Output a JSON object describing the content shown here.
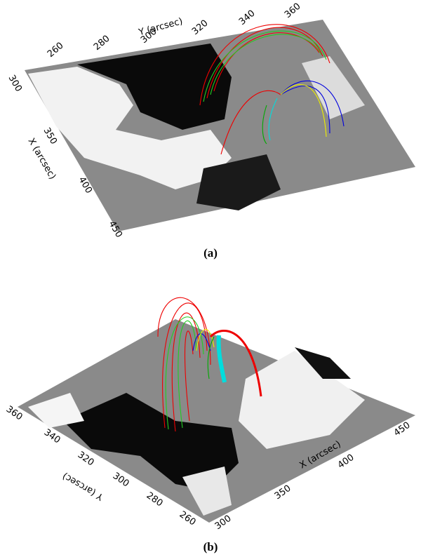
{
  "panels": [
    {
      "caption": "(a)",
      "y_axis": {
        "label": "Y (arcsec)",
        "ticks": [
          "260",
          "280",
          "300",
          "320",
          "340",
          "360"
        ]
      },
      "x_axis": {
        "label": "X (arcsec)",
        "ticks": [
          "300",
          "350",
          "400",
          "450"
        ]
      }
    },
    {
      "caption": "(b)",
      "y_axis": {
        "label": "Y (arcsec)",
        "ticks": [
          "360",
          "340",
          "320",
          "300",
          "280",
          "260"
        ]
      },
      "x_axis": {
        "label": "X (arcsec)",
        "ticks": [
          "300",
          "350",
          "400",
          "450"
        ]
      }
    }
  ]
}
